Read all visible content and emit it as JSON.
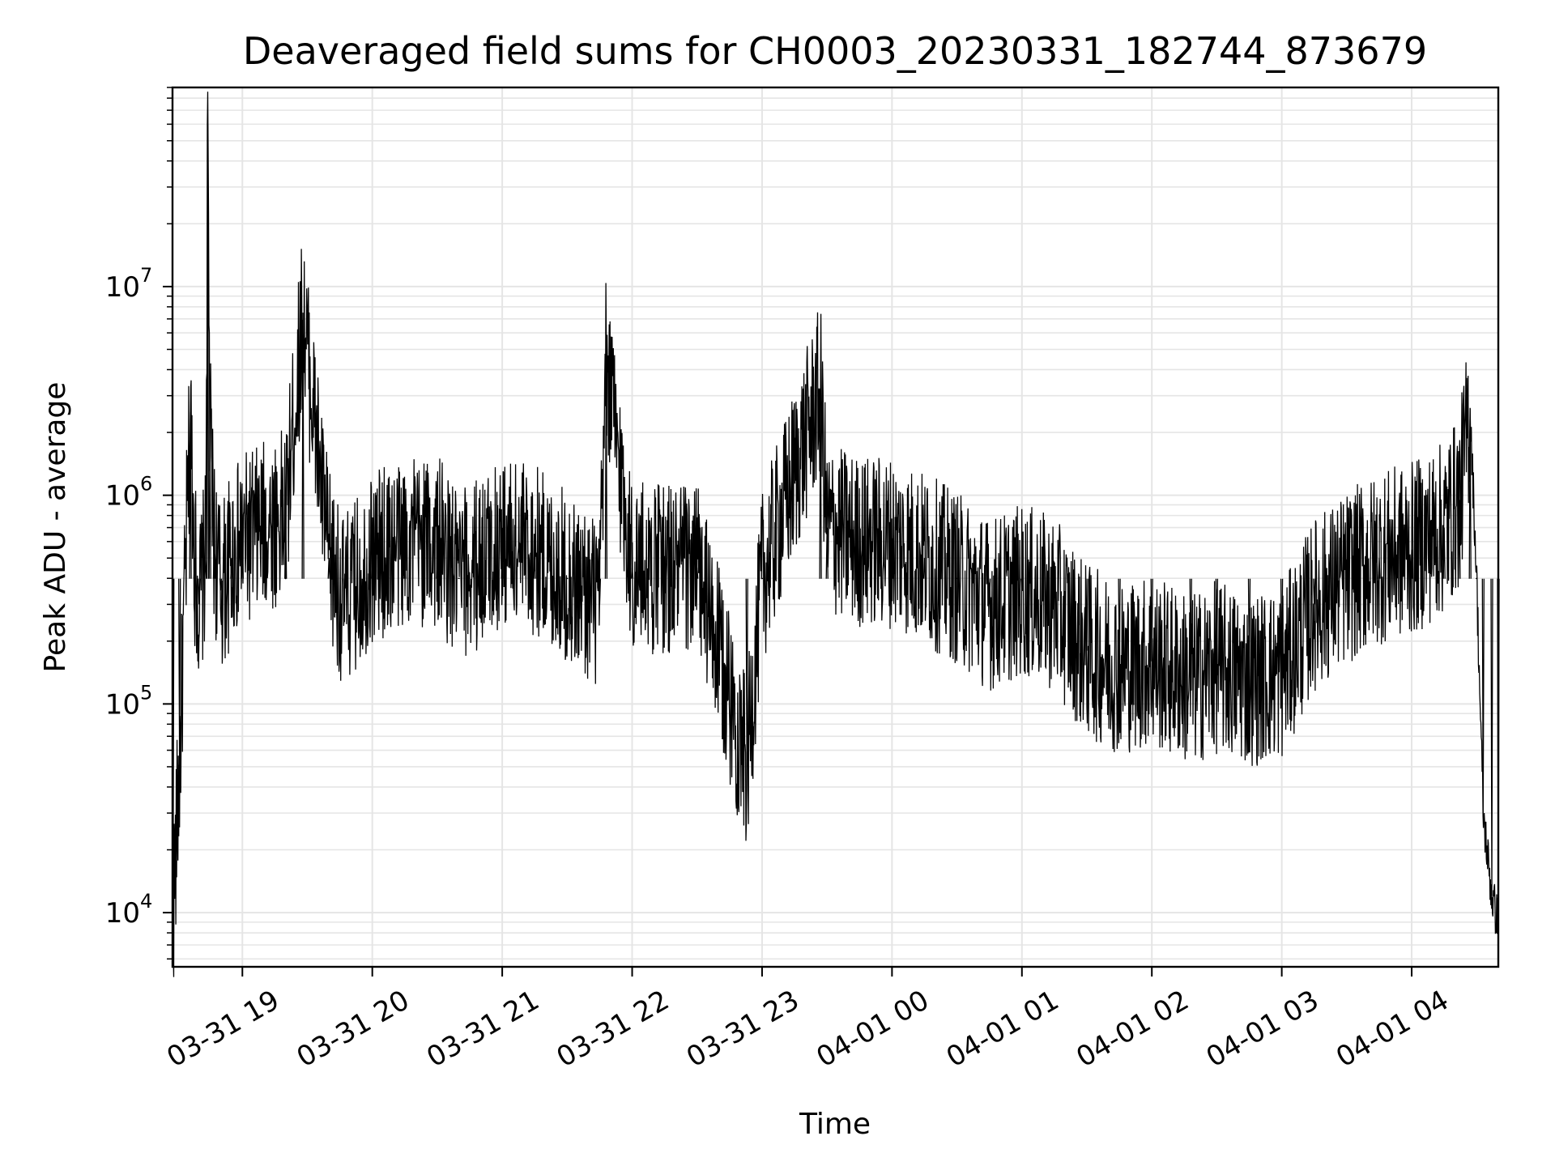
{
  "chart_data": {
    "type": "line",
    "title": "Deaveraged field sums for CH0003_20230331_182744_873679",
    "xlabel": "Time",
    "ylabel": "Peak ADU - average",
    "yscale": "log",
    "ylim": [
      5500,
      90000000
    ],
    "xlim": [
      "03-31 18:27:44",
      "04-01 04:40"
    ],
    "grid": true,
    "line_color": "#000000",
    "grid_color": "#e5e5e5",
    "x_tick_labels": [
      "03-31 19",
      "03-31 20",
      "03-31 21",
      "03-31 22",
      "03-31 23",
      "04-01 00",
      "04-01 01",
      "04-01 02",
      "04-01 03",
      "04-01 04"
    ],
    "y_tick_labels": [
      {
        "value": 10000,
        "base": "10",
        "exp": "4"
      },
      {
        "value": 100000,
        "base": "10",
        "exp": "5"
      },
      {
        "value": 1000000,
        "base": "10",
        "exp": "6"
      },
      {
        "value": 10000000,
        "base": "10",
        "exp": "7"
      }
    ],
    "series": [
      {
        "x": [
          "03-31 18:28",
          "03-31 18:31",
          "03-31 18:36",
          "03-31 18:38",
          "03-31 18:40",
          "03-31 18:43",
          "03-31 18:44",
          "03-31 18:45",
          "03-31 18:47",
          "03-31 18:50",
          "03-31 18:55",
          "03-31 19:00",
          "03-31 19:10",
          "03-31 19:20",
          "03-31 19:28",
          "03-31 19:40",
          "03-31 19:47",
          "03-31 20:00",
          "03-31 20:15",
          "03-31 20:30",
          "03-31 20:40",
          "03-31 21:00",
          "03-31 21:15",
          "03-31 21:30",
          "03-31 21:45",
          "03-31 21:48",
          "03-31 22:00",
          "03-31 22:15",
          "03-31 22:30",
          "03-31 22:53",
          "03-31 23:00",
          "03-31 23:27",
          "03-31 23:30",
          "03-31 23:45",
          "04-01 00:00",
          "04-01 00:15",
          "04-01 00:30",
          "04-01 00:45",
          "04-01 01:00",
          "04-01 01:15",
          "04-01 01:30",
          "04-01 01:45",
          "04-01 02:00",
          "04-01 02:18",
          "04-01 02:30",
          "04-01 02:45",
          "04-01 03:00",
          "04-01 03:15",
          "04-01 03:30",
          "04-01 03:45",
          "04-01 04:00",
          "04-01 04:15",
          "04-01 04:22",
          "04-01 04:27",
          "04-01 04:30",
          "04-01 04:33",
          "04-01 04:37",
          "04-01 04:40"
        ],
        "y": [
          10000,
          50000,
          2500000,
          500000,
          300000,
          500000,
          60000000,
          2000000,
          600000,
          350000,
          500000,
          600000,
          700000,
          800000,
          7500000,
          500000,
          300000,
          500000,
          600000,
          600000,
          400000,
          600000,
          550000,
          400000,
          300000,
          4500000,
          450000,
          450000,
          450000,
          50000,
          400000,
          3200000,
          700000,
          600000,
          600000,
          500000,
          400000,
          300000,
          350000,
          300000,
          180000,
          150000,
          160000,
          130000,
          150000,
          130000,
          140000,
          300000,
          400000,
          500000,
          550000,
          700000,
          950000,
          2600000,
          400000,
          30000,
          12000,
          9000
        ]
      }
    ]
  }
}
